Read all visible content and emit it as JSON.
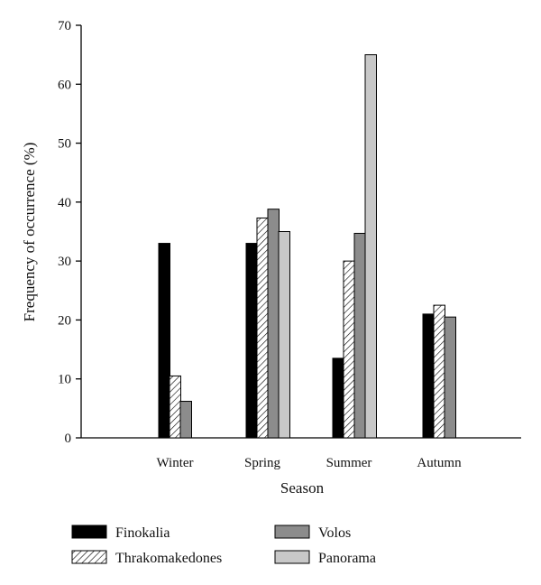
{
  "chart_data": {
    "type": "bar",
    "categories": [
      "Winter",
      "Spring",
      "Summer",
      "Autumn"
    ],
    "series": [
      {
        "name": "Finokalia",
        "values": [
          33,
          33,
          13.5,
          21
        ],
        "pattern": "solid-black"
      },
      {
        "name": "Thrakomakedones",
        "values": [
          10.5,
          37.3,
          30,
          22.5
        ],
        "pattern": "diagonal-hatch"
      },
      {
        "name": "Volos",
        "values": [
          6.2,
          38.8,
          34.7,
          20.5
        ],
        "pattern": "dark-gray"
      },
      {
        "name": "Panorama",
        "values": [
          0,
          35,
          65,
          0
        ],
        "pattern": "light-gray"
      }
    ],
    "xlabel": "Season",
    "ylabel": "Frequency of occurrence (%)",
    "ylim": [
      0,
      70
    ],
    "yticks": [
      0,
      10,
      20,
      30,
      40,
      50,
      60,
      70
    ],
    "legend_position": "bottom",
    "grid": false,
    "colors": {
      "finokalia": "#000000",
      "volos": "#8c8c8c",
      "panorama": "#c8c8c8",
      "hatch_line": "#000000",
      "axis": "#000000"
    }
  }
}
